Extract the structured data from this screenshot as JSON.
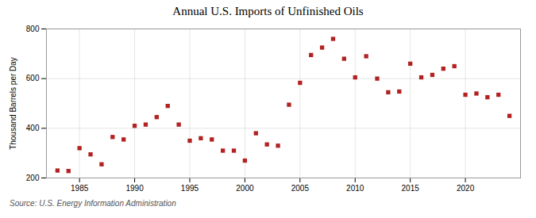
{
  "chart_data": {
    "type": "scatter",
    "title": "Annual U.S. Imports of Unfinished Oils",
    "ylabel": "Thousand Barrels per Day",
    "annotations": [
      "Source: U.S. Energy Information Administration"
    ],
    "x": [
      1983,
      1984,
      1985,
      1986,
      1987,
      1988,
      1989,
      1990,
      1991,
      1992,
      1993,
      1994,
      1995,
      1996,
      1997,
      1998,
      1999,
      2000,
      2001,
      2002,
      2003,
      2004,
      2005,
      2006,
      2007,
      2008,
      2009,
      2010,
      2011,
      2012,
      2013,
      2014,
      2015,
      2016,
      2017,
      2018,
      2019,
      2020,
      2021,
      2022,
      2023,
      2024
    ],
    "values": [
      230,
      228,
      320,
      295,
      255,
      365,
      355,
      410,
      415,
      445,
      490,
      415,
      350,
      360,
      355,
      310,
      310,
      270,
      380,
      335,
      330,
      495,
      583,
      695,
      725,
      760,
      680,
      605,
      690,
      600,
      545,
      548,
      660,
      605,
      615,
      640,
      650,
      535,
      540,
      525,
      535,
      450
    ],
    "color": "#b22222",
    "marker": "square",
    "xlim": [
      1982,
      2025
    ],
    "xticks": [
      1985,
      1990,
      1995,
      2000,
      2005,
      2010,
      2015,
      2020
    ],
    "ylim": [
      200,
      800
    ],
    "yticks": [
      200,
      400,
      600,
      800
    ],
    "grid": true
  }
}
